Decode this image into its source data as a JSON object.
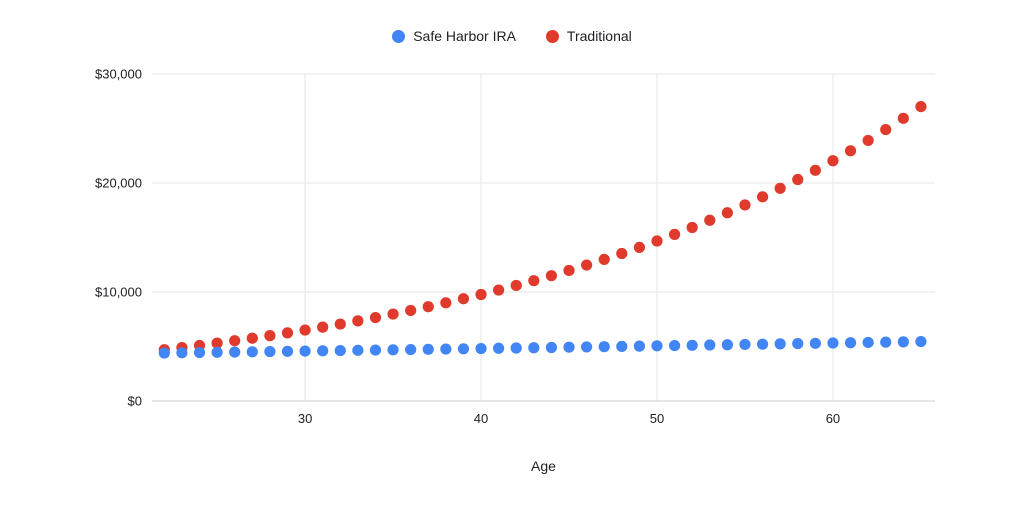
{
  "chart_data": {
    "type": "scatter",
    "title": "",
    "xlabel": "Age",
    "ylabel": "",
    "xlim": [
      21.3,
      65.8
    ],
    "ylim": [
      0,
      30000
    ],
    "x_ticks": [
      30,
      40,
      50,
      60
    ],
    "x_tick_labels": [
      "30",
      "40",
      "50",
      "60"
    ],
    "y_ticks": [
      0,
      10000,
      20000,
      30000
    ],
    "y_tick_labels": [
      "$0",
      "$10,000",
      "$20,000",
      "$30,000"
    ],
    "grid": true,
    "legend_position": "top",
    "x": [
      22,
      23,
      24,
      25,
      26,
      27,
      28,
      29,
      30,
      31,
      32,
      33,
      34,
      35,
      36,
      37,
      38,
      39,
      40,
      41,
      42,
      43,
      44,
      45,
      46,
      47,
      48,
      49,
      50,
      51,
      52,
      53,
      54,
      55,
      56,
      57,
      58,
      59,
      60,
      61,
      62,
      63,
      64,
      65
    ],
    "series": [
      {
        "name": "Safe Harbor IRA",
        "color": "#4285f4",
        "values": [
          4400,
          4422,
          4444,
          4466,
          4489,
          4511,
          4534,
          4556,
          4579,
          4602,
          4625,
          4648,
          4671,
          4695,
          4718,
          4742,
          4766,
          4789,
          4813,
          4837,
          4862,
          4886,
          4910,
          4935,
          4960,
          4984,
          5009,
          5034,
          5060,
          5085,
          5110,
          5136,
          5162,
          5187,
          5213,
          5239,
          5266,
          5292,
          5318,
          5345,
          5372,
          5399,
          5426,
          5453
        ]
      },
      {
        "name": "Traditional",
        "color": "#e03a2c",
        "values": [
          4700,
          4895,
          5098,
          5310,
          5530,
          5760,
          5999,
          6248,
          6507,
          6777,
          7058,
          7351,
          7656,
          7974,
          8305,
          8650,
          9009,
          9383,
          9772,
          10178,
          10600,
          11040,
          11498,
          11976,
          12473,
          12990,
          13529,
          14091,
          14676,
          15285,
          15919,
          16580,
          17268,
          17985,
          18731,
          19509,
          20318,
          21162,
          22040,
          22955,
          23907,
          24899,
          25933,
          27009
        ]
      }
    ],
    "colors": {
      "gridline": "#e6e6e6",
      "baseline": "#cccccc",
      "tick_text": "#202124"
    }
  },
  "legend": {
    "items": [
      {
        "label": "Safe Harbor IRA"
      },
      {
        "label": "Traditional"
      }
    ]
  }
}
